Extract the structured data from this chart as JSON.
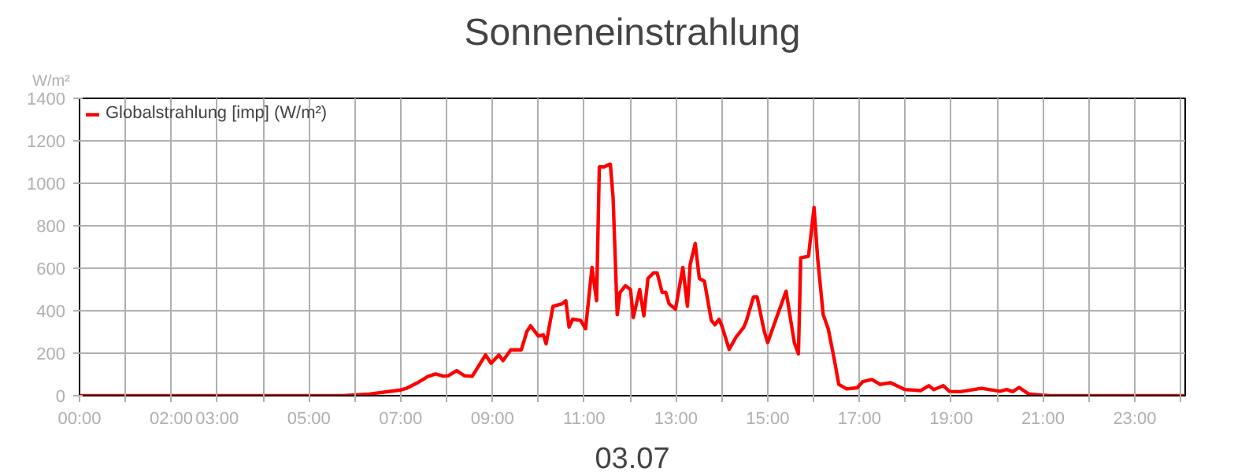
{
  "chart_data": {
    "type": "line",
    "title": "Sonneneinstrahlung",
    "xlabel": "03.07",
    "ylabel": "W/m²",
    "x": [
      0,
      5.74,
      6.32,
      7.0,
      7.13,
      7.36,
      7.59,
      7.76,
      7.87,
      7.93,
      8.04,
      8.22,
      8.39,
      8.56,
      8.85,
      8.97,
      9.14,
      9.23,
      9.4,
      9.63,
      9.75,
      9.83,
      10.0,
      10.11,
      10.17,
      10.32,
      10.52,
      10.6,
      10.67,
      10.75,
      10.92,
      11.03,
      11.17,
      11.27,
      11.33,
      11.44,
      11.5,
      11.57,
      11.63,
      11.72,
      11.78,
      11.9,
      12.01,
      12.07,
      12.21,
      12.3,
      12.39,
      12.51,
      12.59,
      12.7,
      12.78,
      12.85,
      12.99,
      13.15,
      13.25,
      13.31,
      13.42,
      13.51,
      13.62,
      13.77,
      13.85,
      13.94,
      14.0,
      14.16,
      14.31,
      14.48,
      14.54,
      14.69,
      14.77,
      14.92,
      15.0,
      15.15,
      15.4,
      15.58,
      15.67,
      15.72,
      15.89,
      16.01,
      16.09,
      16.21,
      16.32,
      16.44,
      16.55,
      16.72,
      16.95,
      17.07,
      17.27,
      17.45,
      17.68,
      17.99,
      18.33,
      18.51,
      18.62,
      18.83,
      18.97,
      19.2,
      19.66,
      20.06,
      20.21,
      20.34,
      20.48,
      20.69,
      21.15,
      24.1
    ],
    "series": [
      {
        "name": "Globalstrahlung [imp] (W/m²)",
        "color": "#ff0000",
        "values": [
          0,
          0,
          8,
          27,
          35,
          60,
          90,
          102,
          96,
          92,
          94,
          118,
          94,
          91,
          192,
          153,
          192,
          165,
          216,
          216,
          302,
          329,
          281,
          287,
          244,
          421,
          433,
          447,
          323,
          360,
          355,
          315,
          604,
          447,
          1077,
          1077,
          1085,
          1090,
          933,
          381,
          486,
          518,
          500,
          368,
          500,
          376,
          552,
          578,
          578,
          486,
          486,
          433,
          407,
          604,
          421,
          618,
          717,
          552,
          539,
          355,
          334,
          360,
          329,
          218,
          276,
          323,
          355,
          465,
          465,
          307,
          250,
          342,
          492,
          250,
          197,
          649,
          657,
          886,
          644,
          381,
          315,
          184,
          53,
          32,
          37,
          66,
          76,
          53,
          61,
          29,
          24,
          47,
          29,
          47,
          19,
          19,
          35,
          21,
          29,
          19,
          39,
          8,
          0,
          0
        ]
      }
    ],
    "xlim": [
      0,
      24.1
    ],
    "ylim": [
      0,
      1400
    ],
    "yticks": [
      0,
      200,
      400,
      600,
      800,
      1000,
      1200,
      1400
    ],
    "xticks": [
      {
        "value": 0,
        "label": "00:00"
      },
      {
        "value": 1,
        "label": null
      },
      {
        "value": 2,
        "label": "02:00"
      },
      {
        "value": 3,
        "label": "03:00"
      },
      {
        "value": 4,
        "label": null
      },
      {
        "value": 5,
        "label": "05:00"
      },
      {
        "value": 6,
        "label": null
      },
      {
        "value": 7,
        "label": "07:00"
      },
      {
        "value": 8,
        "label": null
      },
      {
        "value": 9,
        "label": "09:00"
      },
      {
        "value": 10,
        "label": null
      },
      {
        "value": 11,
        "label": "11:00"
      },
      {
        "value": 12,
        "label": null
      },
      {
        "value": 13,
        "label": "13:00"
      },
      {
        "value": 14,
        "label": null
      },
      {
        "value": 15,
        "label": "15:00"
      },
      {
        "value": 16,
        "label": null
      },
      {
        "value": 17,
        "label": "17:00"
      },
      {
        "value": 18,
        "label": null
      },
      {
        "value": 19,
        "label": "19:00"
      },
      {
        "value": 20,
        "label": null
      },
      {
        "value": 21,
        "label": "21:00"
      },
      {
        "value": 22,
        "label": null
      },
      {
        "value": 23,
        "label": "23:00"
      },
      {
        "value": 24,
        "label": null
      }
    ],
    "grid": true,
    "legend": "top left",
    "marker": "none",
    "line_style": "solid"
  }
}
